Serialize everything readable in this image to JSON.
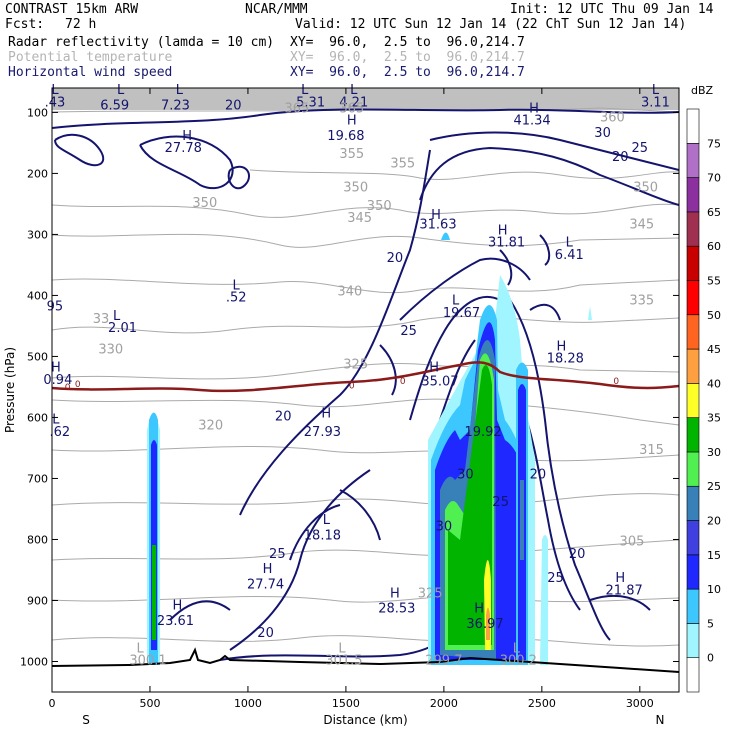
{
  "header": {
    "model": "CONTRAST 15km ARW",
    "center": "NCAR/MMM",
    "init": "Init: 12 UTC Thu 09 Jan 14",
    "fcst_label": "Fcst:",
    "fcst_value": "72 h",
    "valid": "Valid: 12 UTC Sun 12 Jan 14 (22 ChT Sun 12 Jan 14)",
    "fields": [
      {
        "name": "Radar reflectivity (lamda = 10 cm)",
        "xy": "XY=  96.0,  2.5 to  96.0,214.7"
      },
      {
        "name": "Potential temperature",
        "xy": "XY=  96.0,  2.5 to  96.0,214.7"
      },
      {
        "name": "Horizontal wind speed",
        "xy": "XY=  96.0,  2.5 to  96.0,214.7"
      }
    ]
  },
  "chart_data": {
    "type": "cross-section",
    "xlabel": "Distance (km)",
    "ylabel": "Pressure (hPa)",
    "xlim": [
      0,
      3200
    ],
    "ylim": [
      1050,
      60
    ],
    "x_ticks": [
      0,
      500,
      1000,
      1500,
      2000,
      2500,
      3000
    ],
    "x_tick_labels": [
      "0",
      "500",
      "1000",
      "1500",
      "2000",
      "2500",
      "3000"
    ],
    "y_ticks": [
      100,
      200,
      300,
      400,
      500,
      600,
      700,
      800,
      900,
      1000
    ],
    "y_tick_labels": [
      "100",
      "200",
      "300",
      "400",
      "500",
      "600",
      "700",
      "800",
      "900",
      "1000"
    ],
    "end_labels": {
      "left": "S",
      "right": "N"
    },
    "colorbar": {
      "units": "dBZ",
      "levels": [
        "0",
        "5",
        "10",
        "15",
        "20",
        "25",
        "30",
        "35",
        "40",
        "45",
        "50",
        "55",
        "60",
        "65",
        "70",
        "75"
      ],
      "colors": [
        "#ffffff",
        "#a0f5ff",
        "#3cc8ff",
        "#1e28ff",
        "#4040e0",
        "#3880b8",
        "#50f050",
        "#00b400",
        "#ffff28",
        "#ffa040",
        "#ff6420",
        "#ff0000",
        "#c80000",
        "#a03050",
        "#8c30a0",
        "#b070c8",
        "#ffffff"
      ]
    },
    "freezing_level_label": "0",
    "wind_labels": [
      {
        "text": "L",
        "x": 15,
        "p": 70
      },
      {
        "text": ".43",
        "x": 15,
        "p": 90
      },
      {
        "text": "L",
        "x": 350,
        "p": 70
      },
      {
        "text": "6.59",
        "x": 320,
        "p": 95
      },
      {
        "text": "L",
        "x": 650,
        "p": 70
      },
      {
        "text": "7.23",
        "x": 630,
        "p": 95
      },
      {
        "text": "20",
        "x": 925,
        "p": 95
      },
      {
        "text": "L",
        "x": 1290,
        "p": 70
      },
      {
        "text": "5.31",
        "x": 1320,
        "p": 90
      },
      {
        "text": "L",
        "x": 1540,
        "p": 70
      },
      {
        "text": "4.21",
        "x": 1540,
        "p": 90
      },
      {
        "text": "L",
        "x": 3080,
        "p": 70
      },
      {
        "text": "3.11",
        "x": 3080,
        "p": 90
      },
      {
        "text": "H",
        "x": 2460,
        "p": 100
      },
      {
        "text": "41.34",
        "x": 2450,
        "p": 120
      },
      {
        "text": "30",
        "x": 2810,
        "p": 140
      },
      {
        "text": "25",
        "x": 3000,
        "p": 165
      },
      {
        "text": "20",
        "x": 2900,
        "p": 180
      },
      {
        "text": "H",
        "x": 690,
        "p": 145
      },
      {
        "text": "27.78",
        "x": 670,
        "p": 165
      },
      {
        "text": "H",
        "x": 1530,
        "p": 120
      },
      {
        "text": "19.68",
        "x": 1500,
        "p": 145
      },
      {
        "text": "H",
        "x": 1960,
        "p": 275
      },
      {
        "text": "31.63",
        "x": 1970,
        "p": 290
      },
      {
        "text": "H",
        "x": 2300,
        "p": 300
      },
      {
        "text": "31.81",
        "x": 2320,
        "p": 320
      },
      {
        "text": "L",
        "x": 2640,
        "p": 320
      },
      {
        "text": "6.41",
        "x": 2640,
        "p": 340
      },
      {
        "text": "20",
        "x": 1750,
        "p": 345
      },
      {
        "text": "L",
        "x": 940,
        "p": 390
      },
      {
        "text": ".52",
        "x": 940,
        "p": 410
      },
      {
        "text": "L",
        "x": 2060,
        "p": 415
      },
      {
        "text": "19.67",
        "x": 2090,
        "p": 435
      },
      {
        "text": "L",
        "x": 330,
        "p": 440
      },
      {
        "text": "2.01",
        "x": 360,
        "p": 460
      },
      {
        "text": "95",
        "x": 15,
        "p": 425
      },
      {
        "text": "25",
        "x": 1820,
        "p": 465
      },
      {
        "text": "H",
        "x": 2600,
        "p": 490
      },
      {
        "text": "18.28",
        "x": 2620,
        "p": 510
      },
      {
        "text": "H",
        "x": 20,
        "p": 525
      },
      {
        "text": "0.94",
        "x": 30,
        "p": 545
      },
      {
        "text": "H",
        "x": 1950,
        "p": 525
      },
      {
        "text": "35.07",
        "x": 1980,
        "p": 548
      },
      {
        "text": "L",
        "x": 20,
        "p": 610
      },
      {
        "text": ".62",
        "x": 40,
        "p": 630
      },
      {
        "text": "20",
        "x": 1180,
        "p": 605
      },
      {
        "text": "H",
        "x": 1400,
        "p": 600
      },
      {
        "text": "27.93",
        "x": 1380,
        "p": 630
      },
      {
        "text": "19.92",
        "x": 2200,
        "p": 630
      },
      {
        "text": "30",
        "x": 2110,
        "p": 700
      },
      {
        "text": "20",
        "x": 2480,
        "p": 700
      },
      {
        "text": "25",
        "x": 2290,
        "p": 745
      },
      {
        "text": "30",
        "x": 2000,
        "p": 785
      },
      {
        "text": "L",
        "x": 1400,
        "p": 775
      },
      {
        "text": "18.18",
        "x": 1380,
        "p": 800
      },
      {
        "text": "25",
        "x": 1150,
        "p": 830
      },
      {
        "text": "H",
        "x": 1100,
        "p": 855
      },
      {
        "text": "27.74",
        "x": 1090,
        "p": 880
      },
      {
        "text": "20",
        "x": 2680,
        "p": 830
      },
      {
        "text": "25",
        "x": 2570,
        "p": 870
      },
      {
        "text": "H",
        "x": 2900,
        "p": 870
      },
      {
        "text": "21.87",
        "x": 2920,
        "p": 890
      },
      {
        "text": "H",
        "x": 640,
        "p": 915
      },
      {
        "text": "23.61",
        "x": 630,
        "p": 940
      },
      {
        "text": "H",
        "x": 1750,
        "p": 895
      },
      {
        "text": "28.53",
        "x": 1760,
        "p": 920
      },
      {
        "text": "H",
        "x": 2180,
        "p": 920
      },
      {
        "text": "36.97",
        "x": 2210,
        "p": 945
      },
      {
        "text": "20",
        "x": 1090,
        "p": 960
      }
    ],
    "theta_labels": [
      {
        "text": "365",
        "x": 1250,
        "p": 100
      },
      {
        "text": "365",
        "x": 1530,
        "p": 100
      },
      {
        "text": "360",
        "x": 2860,
        "p": 115
      },
      {
        "text": "355",
        "x": 1530,
        "p": 175
      },
      {
        "text": "355",
        "x": 1790,
        "p": 190
      },
      {
        "text": "350",
        "x": 1550,
        "p": 230
      },
      {
        "text": "350",
        "x": 780,
        "p": 255
      },
      {
        "text": "350",
        "x": 1670,
        "p": 260
      },
      {
        "text": "350",
        "x": 3030,
        "p": 230
      },
      {
        "text": "345",
        "x": 1570,
        "p": 280
      },
      {
        "text": "345",
        "x": 3010,
        "p": 290
      },
      {
        "text": "340",
        "x": 1520,
        "p": 400
      },
      {
        "text": "335",
        "x": 3010,
        "p": 415
      },
      {
        "text": "33",
        "x": 250,
        "p": 445
      },
      {
        "text": "330",
        "x": 300,
        "p": 495
      },
      {
        "text": "325",
        "x": 1550,
        "p": 520
      },
      {
        "text": "320",
        "x": 810,
        "p": 620
      },
      {
        "text": "315",
        "x": 3060,
        "p": 660
      },
      {
        "text": "305",
        "x": 2960,
        "p": 810
      },
      {
        "text": "325",
        "x": 1930,
        "p": 895
      },
      {
        "text": "L",
        "x": 450,
        "p": 985
      },
      {
        "text": "300.1",
        "x": 490,
        "p": 1005
      },
      {
        "text": "L",
        "x": 1480,
        "p": 985
      },
      {
        "text": "301.5",
        "x": 1490,
        "p": 1005
      },
      {
        "text": "299.7",
        "x": 2000,
        "p": 1005
      },
      {
        "text": "L",
        "x": 2370,
        "p": 985
      },
      {
        "text": "300.2",
        "x": 2380,
        "p": 1005
      }
    ]
  }
}
